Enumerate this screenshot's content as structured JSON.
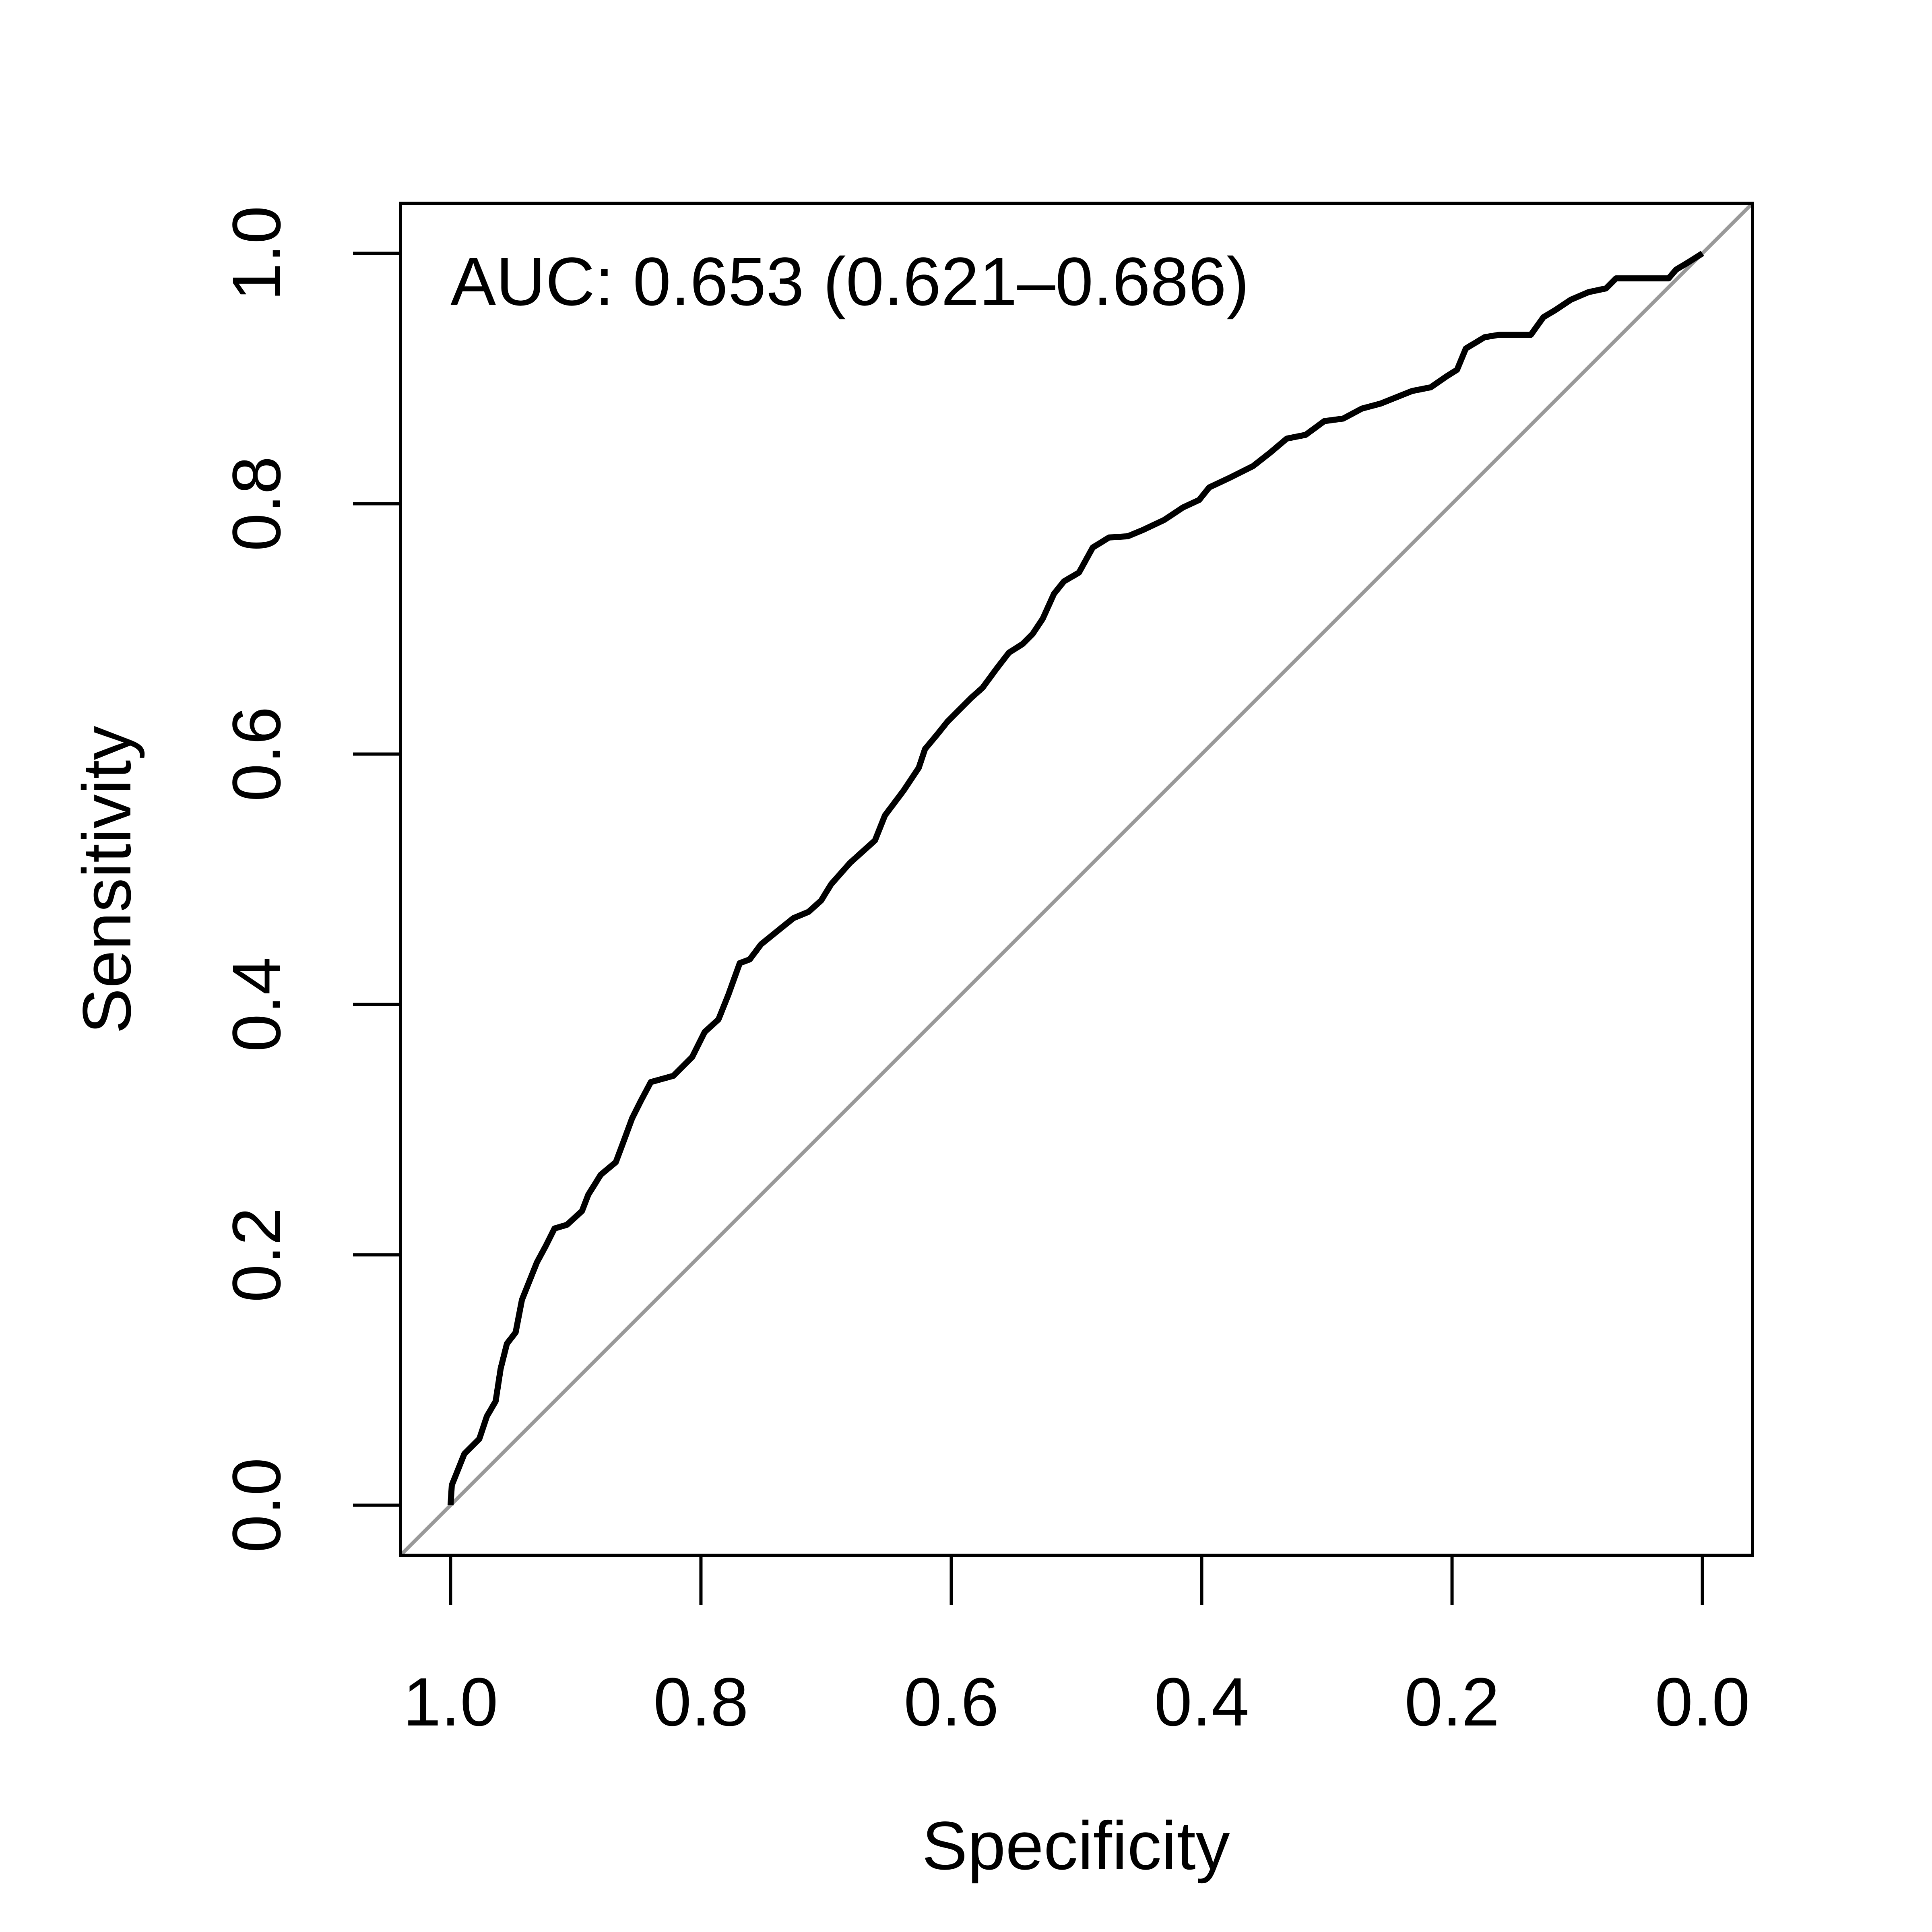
{
  "chart_data": {
    "type": "line",
    "annotation": "AUC: 0.653 (0.621–0.686)",
    "xlabel": "Specificity",
    "ylabel": "Sensitivity",
    "x": [
      1.0,
      0.999,
      0.995,
      0.989,
      0.977,
      0.971,
      0.964,
      0.96,
      0.955,
      0.948,
      0.943,
      0.931,
      0.924,
      0.917,
      0.907,
      0.895,
      0.89,
      0.88,
      0.868,
      0.862,
      0.855,
      0.848,
      0.84,
      0.822,
      0.807,
      0.797,
      0.786,
      0.778,
      0.769,
      0.761,
      0.752,
      0.736,
      0.726,
      0.714,
      0.704,
      0.696,
      0.681,
      0.661,
      0.653,
      0.638,
      0.626,
      0.621,
      0.611,
      0.603,
      0.595,
      0.584,
      0.575,
      0.564,
      0.554,
      0.543,
      0.535,
      0.527,
      0.518,
      0.51,
      0.498,
      0.487,
      0.474,
      0.459,
      0.447,
      0.43,
      0.415,
      0.402,
      0.394,
      0.377,
      0.359,
      0.345,
      0.332,
      0.317,
      0.302,
      0.287,
      0.272,
      0.257,
      0.232,
      0.217,
      0.204,
      0.196,
      0.189,
      0.174,
      0.162,
      0.137,
      0.127,
      0.117,
      0.105,
      0.091,
      0.077,
      0.069,
      0.027,
      0.021,
      0.011,
      0.0
    ],
    "values": [
      0.0,
      0.016,
      0.026,
      0.041,
      0.053,
      0.071,
      0.083,
      0.109,
      0.129,
      0.138,
      0.164,
      0.194,
      0.207,
      0.221,
      0.224,
      0.235,
      0.248,
      0.264,
      0.274,
      0.29,
      0.309,
      0.323,
      0.338,
      0.343,
      0.358,
      0.378,
      0.388,
      0.408,
      0.433,
      0.436,
      0.448,
      0.461,
      0.469,
      0.474,
      0.483,
      0.496,
      0.513,
      0.531,
      0.551,
      0.571,
      0.589,
      0.604,
      0.616,
      0.626,
      0.634,
      0.645,
      0.653,
      0.668,
      0.681,
      0.688,
      0.696,
      0.708,
      0.728,
      0.738,
      0.745,
      0.765,
      0.773,
      0.774,
      0.779,
      0.787,
      0.797,
      0.803,
      0.813,
      0.821,
      0.83,
      0.841,
      0.852,
      0.855,
      0.866,
      0.868,
      0.876,
      0.88,
      0.89,
      0.893,
      0.902,
      0.907,
      0.924,
      0.933,
      0.935,
      0.935,
      0.949,
      0.955,
      0.963,
      0.969,
      0.972,
      0.98,
      0.98,
      0.987,
      0.993,
      1.0
    ],
    "color": "#000000",
    "diagonal_color": "#999999",
    "xlim": [
      1.04,
      -0.04
    ],
    "ylim": [
      -0.04,
      1.04
    ],
    "xticks": [
      {
        "value": 1,
        "label": "1.0"
      },
      0.8,
      0.6,
      0.4,
      0.2,
      {
        "value": 0,
        "label": "0.0"
      }
    ],
    "yticks": [
      {
        "value": 0,
        "label": "0.0"
      },
      0.2,
      0.4,
      0.6,
      0.8,
      {
        "value": 1,
        "label": "1.0"
      }
    ]
  }
}
